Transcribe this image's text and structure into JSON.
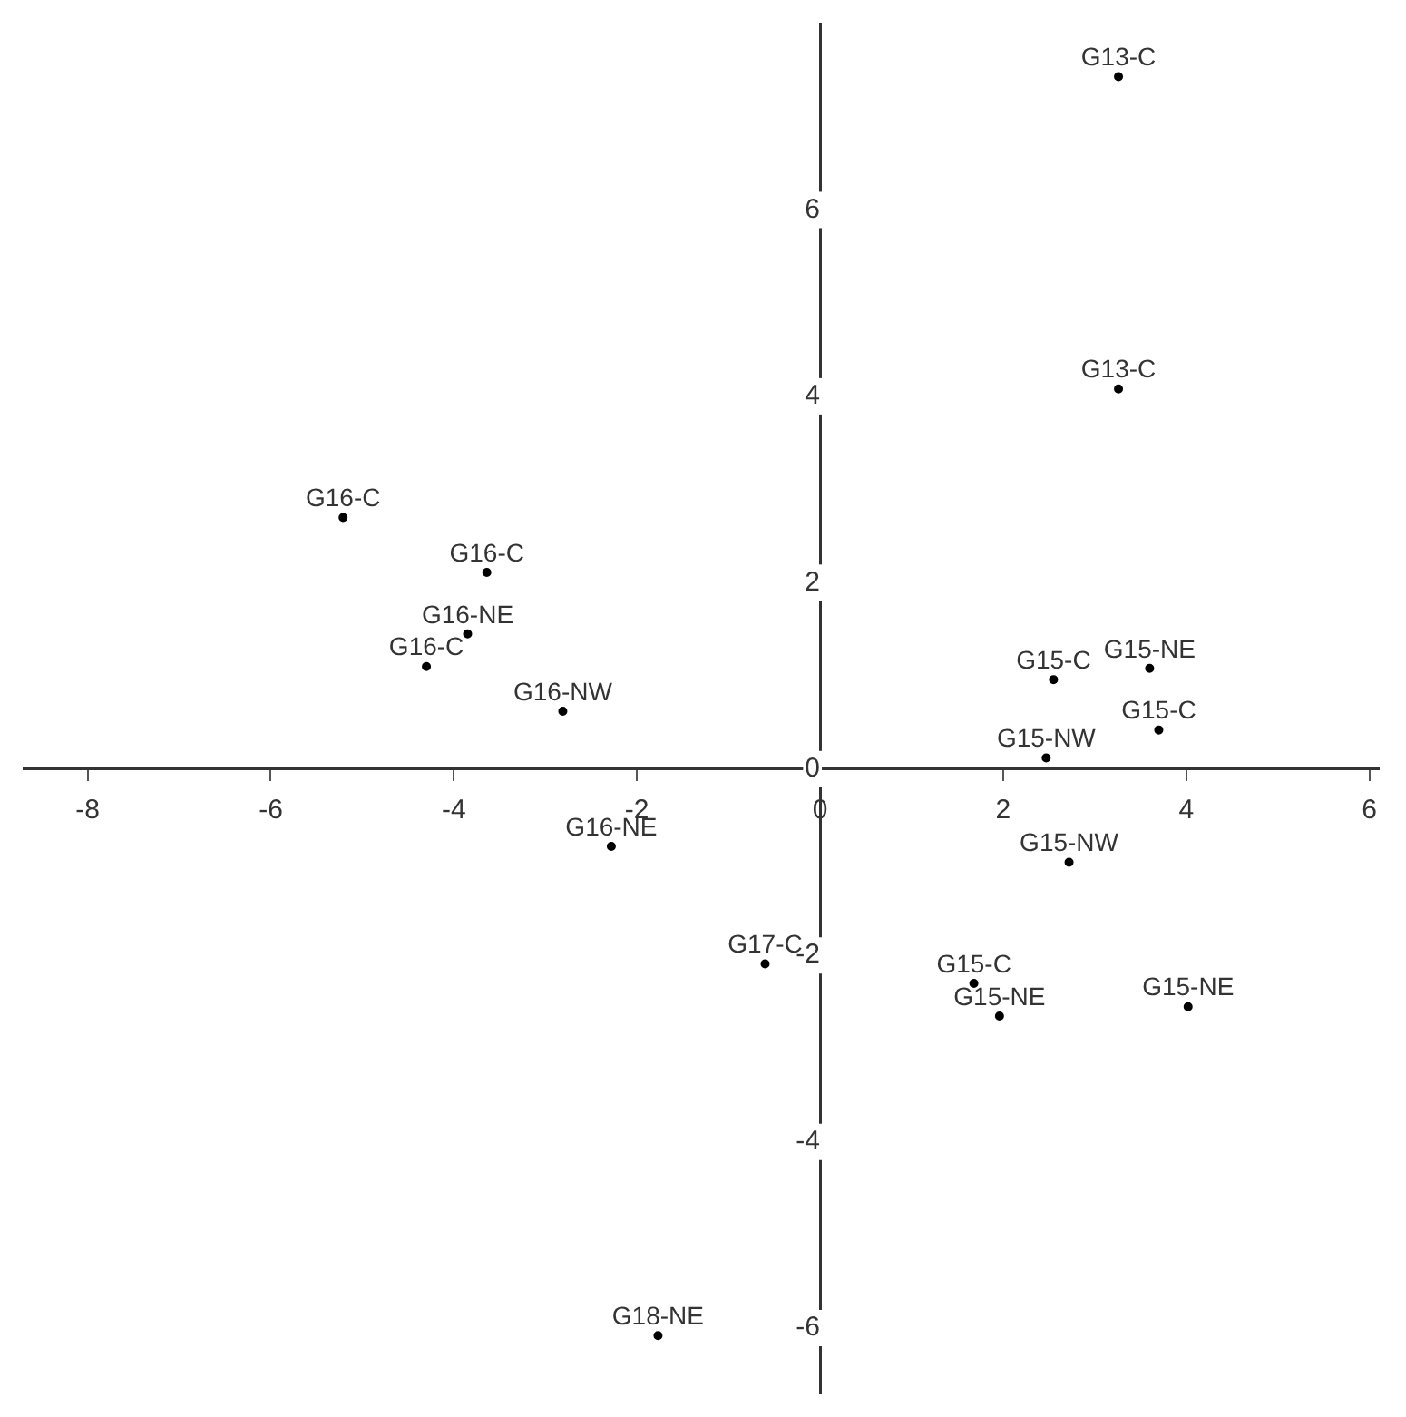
{
  "chart_data": {
    "type": "scatter",
    "marker": "circle",
    "grid": false,
    "xlim": [
      -8.7,
      6.1
    ],
    "ylim": [
      -6.7,
      8
    ],
    "xticks": [
      -8,
      -6,
      -4,
      -2,
      0,
      2,
      4,
      6
    ],
    "yticks": [
      -6,
      -4,
      -2,
      0,
      2,
      4,
      6
    ],
    "tick_labels": "xy",
    "x": [
      3.26,
      3.26,
      -5.21,
      -3.64,
      -3.85,
      -4.3,
      -2.81,
      2.55,
      3.6,
      3.7,
      2.47,
      2.72,
      -2.28,
      -0.6,
      1.68,
      1.96,
      4.02,
      -1.77
    ],
    "values": [
      7.43,
      4.08,
      2.7,
      2.11,
      1.45,
      1.1,
      0.62,
      0.96,
      1.08,
      0.42,
      0.12,
      -1.0,
      -0.83,
      -2.09,
      -2.3,
      -2.65,
      -2.55,
      -6.08
    ],
    "annotations": [
      {
        "text": "G13-C",
        "x": 3.26,
        "y": 7.43
      },
      {
        "text": "G13-C",
        "x": 3.26,
        "y": 4.08
      },
      {
        "text": "G16-C",
        "x": -5.21,
        "y": 2.7
      },
      {
        "text": "G16-C",
        "x": -3.64,
        "y": 2.11
      },
      {
        "text": "G16-NE",
        "x": -3.85,
        "y": 1.45
      },
      {
        "text": "G16-C",
        "x": -4.3,
        "y": 1.1
      },
      {
        "text": "G16-NW",
        "x": -2.81,
        "y": 0.62
      },
      {
        "text": "G15-C",
        "x": 2.55,
        "y": 0.96
      },
      {
        "text": "G15-NE",
        "x": 3.6,
        "y": 1.08
      },
      {
        "text": "G15-C",
        "x": 3.7,
        "y": 0.42
      },
      {
        "text": "G15-NW",
        "x": 2.47,
        "y": 0.12
      },
      {
        "text": "G15-NW",
        "x": 2.72,
        "y": -1.0
      },
      {
        "text": "G16-NE",
        "x": -2.28,
        "y": -0.83
      },
      {
        "text": "G17-C",
        "x": -0.6,
        "y": -2.09
      },
      {
        "text": "G15-C",
        "x": 1.68,
        "y": -2.3
      },
      {
        "text": "G15-NE",
        "x": 1.96,
        "y": -2.65
      },
      {
        "text": "G15-NE",
        "x": 4.02,
        "y": -2.55
      },
      {
        "text": "G18-NE",
        "x": -1.77,
        "y": -6.08
      }
    ]
  }
}
